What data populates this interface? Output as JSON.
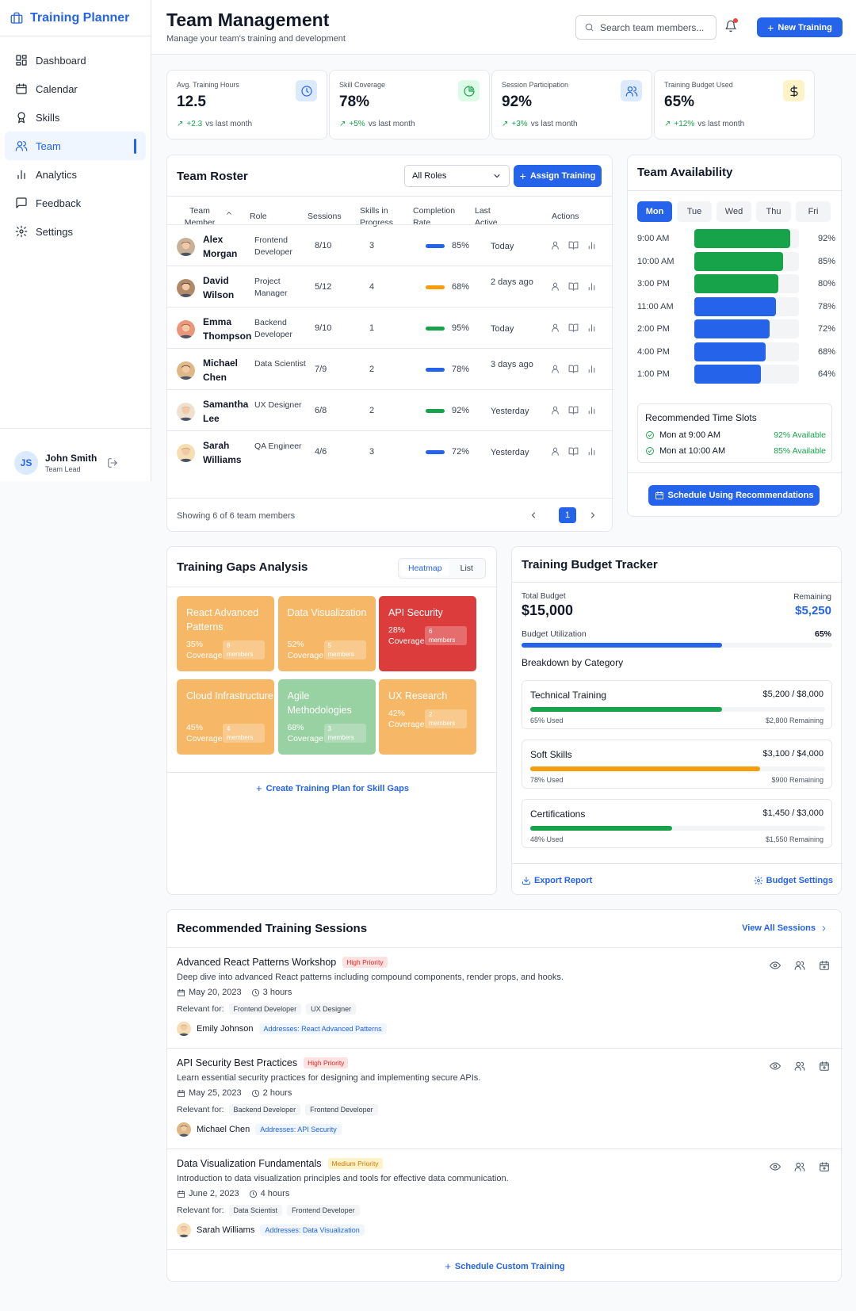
{
  "app": {
    "title": "Training Planner"
  },
  "nav": [
    {
      "label": "Dashboard"
    },
    {
      "label": "Calendar"
    },
    {
      "label": "Skills"
    },
    {
      "label": "Team"
    },
    {
      "label": "Analytics"
    },
    {
      "label": "Feedback"
    },
    {
      "label": "Settings"
    }
  ],
  "user": {
    "initials": "JS",
    "name": "John Smith",
    "role": "Team Lead"
  },
  "header": {
    "title": "Team Management",
    "subtitle": "Manage your team's training and development",
    "search_placeholder": "Search team members...",
    "new_training": "New Training"
  },
  "stats": [
    {
      "label": "Avg. Training Hours",
      "value": "12.5",
      "change": "+2.3",
      "suffix": "vs last month",
      "icon": "clock-icon",
      "color": "#2563eb",
      "bg": "#dbeafe"
    },
    {
      "label": "Skill Coverage",
      "value": "78%",
      "change": "+5%",
      "suffix": "vs last month",
      "icon": "pie-chart-icon",
      "color": "#16a34a",
      "bg": "#dcfce7"
    },
    {
      "label": "Session Participation",
      "value": "92%",
      "change": "+3%",
      "suffix": "vs last month",
      "icon": "users-icon",
      "color": "#2563eb",
      "bg": "#dbeafe"
    },
    {
      "label": "Training Budget Used",
      "value": "65%",
      "change": "+12%",
      "suffix": "vs last month",
      "icon": "dollar-icon",
      "color": "#111827",
      "bg": "#fef3c7"
    }
  ],
  "roster": {
    "title": "Team Roster",
    "role_filter": "All Roles",
    "assign": "Assign Training",
    "columns": [
      "Team Member",
      "Role",
      "Sessions",
      "Skills in Progress",
      "Completion Rate",
      "Last Active",
      "Actions"
    ],
    "rows": [
      {
        "name": "Alex Morgan",
        "role": "Frontend Developer",
        "sessions": "8/10",
        "skills": "3",
        "rate": "85%",
        "rate_color": "#2563eb",
        "last": "Today"
      },
      {
        "name": "David Wilson",
        "role": "Project Manager",
        "sessions": "5/12",
        "skills": "4",
        "rate": "68%",
        "rate_color": "#f59e0b",
        "last": "2 days ago"
      },
      {
        "name": "Emma Thompson",
        "role": "Backend Developer",
        "sessions": "9/10",
        "skills": "1",
        "rate": "95%",
        "rate_color": "#16a34a",
        "last": "Today"
      },
      {
        "name": "Michael Chen",
        "role": "Data Scientist",
        "sessions": "7/9",
        "skills": "2",
        "rate": "78%",
        "rate_color": "#2563eb",
        "last": "3 days ago"
      },
      {
        "name": "Samantha Lee",
        "role": "UX Designer",
        "sessions": "6/8",
        "skills": "2",
        "rate": "92%",
        "rate_color": "#16a34a",
        "last": "Yesterday"
      },
      {
        "name": "Sarah Williams",
        "role": "QA Engineer",
        "sessions": "4/6",
        "skills": "3",
        "rate": "72%",
        "rate_color": "#2563eb",
        "last": "Yesterday"
      }
    ],
    "footer": "Showing 6 of 6 team members",
    "page": "1"
  },
  "availability": {
    "title": "Team Availability",
    "days": [
      "Mon",
      "Tue",
      "Wed",
      "Thu",
      "Fri"
    ],
    "slots": [
      {
        "time": "9:00 AM",
        "value": 92,
        "label": "92%",
        "color": "#16a34a"
      },
      {
        "time": "10:00 AM",
        "value": 85,
        "label": "85%",
        "color": "#16a34a"
      },
      {
        "time": "3:00 PM",
        "value": 80,
        "label": "80%",
        "color": "#16a34a"
      },
      {
        "time": "11:00 AM",
        "value": 78,
        "label": "78%",
        "color": "#2563eb"
      },
      {
        "time": "2:00 PM",
        "value": 72,
        "label": "72%",
        "color": "#2563eb"
      },
      {
        "time": "4:00 PM",
        "value": 68,
        "label": "68%",
        "color": "#2563eb"
      },
      {
        "time": "1:00 PM",
        "value": 64,
        "label": "64%",
        "color": "#2563eb"
      }
    ],
    "rec_title": "Recommended Time Slots",
    "recs": [
      {
        "slot": "Mon at 9:00 AM",
        "avail": "92% Available"
      },
      {
        "slot": "Mon at 10:00 AM",
        "avail": "85% Available"
      }
    ],
    "schedule_btn": "Schedule Using Recommendations"
  },
  "gaps": {
    "title": "Training Gaps Analysis",
    "views": [
      "Heatmap",
      "List"
    ],
    "tiles": [
      {
        "name": "React Advanced Patterns",
        "pct": "35%",
        "cov": "Coverage",
        "members": "8",
        "mlabel": "members",
        "color": "#f6b867"
      },
      {
        "name": "Data Visualization",
        "pct": "52%",
        "cov": "Coverage",
        "members": "5",
        "mlabel": "members",
        "color": "#f6b867"
      },
      {
        "name": "API Security",
        "pct": "28%",
        "cov": "Coverage",
        "members": "6",
        "mlabel": "members",
        "color": "#dc3c3c"
      },
      {
        "name": "Cloud Infrastructure",
        "pct": "45%",
        "cov": "Coverage",
        "members": "4",
        "mlabel": "members",
        "color": "#f6b867"
      },
      {
        "name": "Agile Methodologies",
        "pct": "68%",
        "cov": "Coverage",
        "members": "3",
        "mlabel": "members",
        "color": "#98d1a2"
      },
      {
        "name": "UX Research",
        "pct": "42%",
        "cov": "Coverage",
        "members": "2",
        "mlabel": "members",
        "color": "#f6b867"
      }
    ],
    "link": "Create Training Plan for Skill Gaps"
  },
  "budget": {
    "title": "Training Budget Tracker",
    "total_label": "Total Budget",
    "total": "$15,000",
    "remaining_label": "Remaining",
    "remaining": "$5,250",
    "util_label": "Budget Utilization",
    "util": "65%",
    "util_value": 0.65,
    "breakdown": "Breakdown by Category",
    "cats": [
      {
        "name": "Technical Training",
        "amount": "$5,200 / $8,000",
        "used": "65% Used",
        "value": 0.65,
        "remaining": "$2,800 Remaining",
        "color": "#16a34a"
      },
      {
        "name": "Soft Skills",
        "amount": "$3,100 / $4,000",
        "used": "78% Used",
        "value": 0.78,
        "remaining": "$900 Remaining",
        "color": "#f59e0b"
      },
      {
        "name": "Certifications",
        "amount": "$1,450 / $3,000",
        "used": "48% Used",
        "value": 0.48,
        "remaining": "$1,550 Remaining",
        "color": "#16a34a"
      }
    ],
    "export": "Export Report",
    "settings": "Budget Settings"
  },
  "sessions": {
    "title": "Recommended Training Sessions",
    "view_all": "View All Sessions",
    "relevant_label": "Relevant for:",
    "items": [
      {
        "title": "Advanced React Patterns Workshop",
        "priority": "High Priority",
        "prio_fg": "#dc2626",
        "prio_bg": "#fee2e2",
        "desc": "Deep dive into advanced React patterns including compound components, render props, and hooks.",
        "date": "May 20, 2023",
        "duration": "3 hours",
        "tags": [
          "Frontend Developer",
          "UX Designer"
        ],
        "person": "Emily Johnson",
        "addresses": "Addresses: React Advanced Patterns"
      },
      {
        "title": "API Security Best Practices",
        "priority": "High Priority",
        "prio_fg": "#dc2626",
        "prio_bg": "#fee2e2",
        "desc": "Learn essential security practices for designing and implementing secure APIs.",
        "date": "May 25, 2023",
        "duration": "2 hours",
        "tags": [
          "Backend Developer",
          "Frontend Developer"
        ],
        "person": "Michael Chen",
        "addresses": "Addresses: API Security"
      },
      {
        "title": "Data Visualization Fundamentals",
        "priority": "Medium Priority",
        "prio_fg": "#d97706",
        "prio_bg": "#fef3c7",
        "desc": "Introduction to data visualization principles and tools for effective data communication.",
        "date": "June 2, 2023",
        "duration": "4 hours",
        "tags": [
          "Data Scientist",
          "Frontend Developer"
        ],
        "person": "Sarah Williams",
        "addresses": "Addresses: Data Visualization"
      }
    ],
    "custom": "Schedule Custom Training"
  }
}
